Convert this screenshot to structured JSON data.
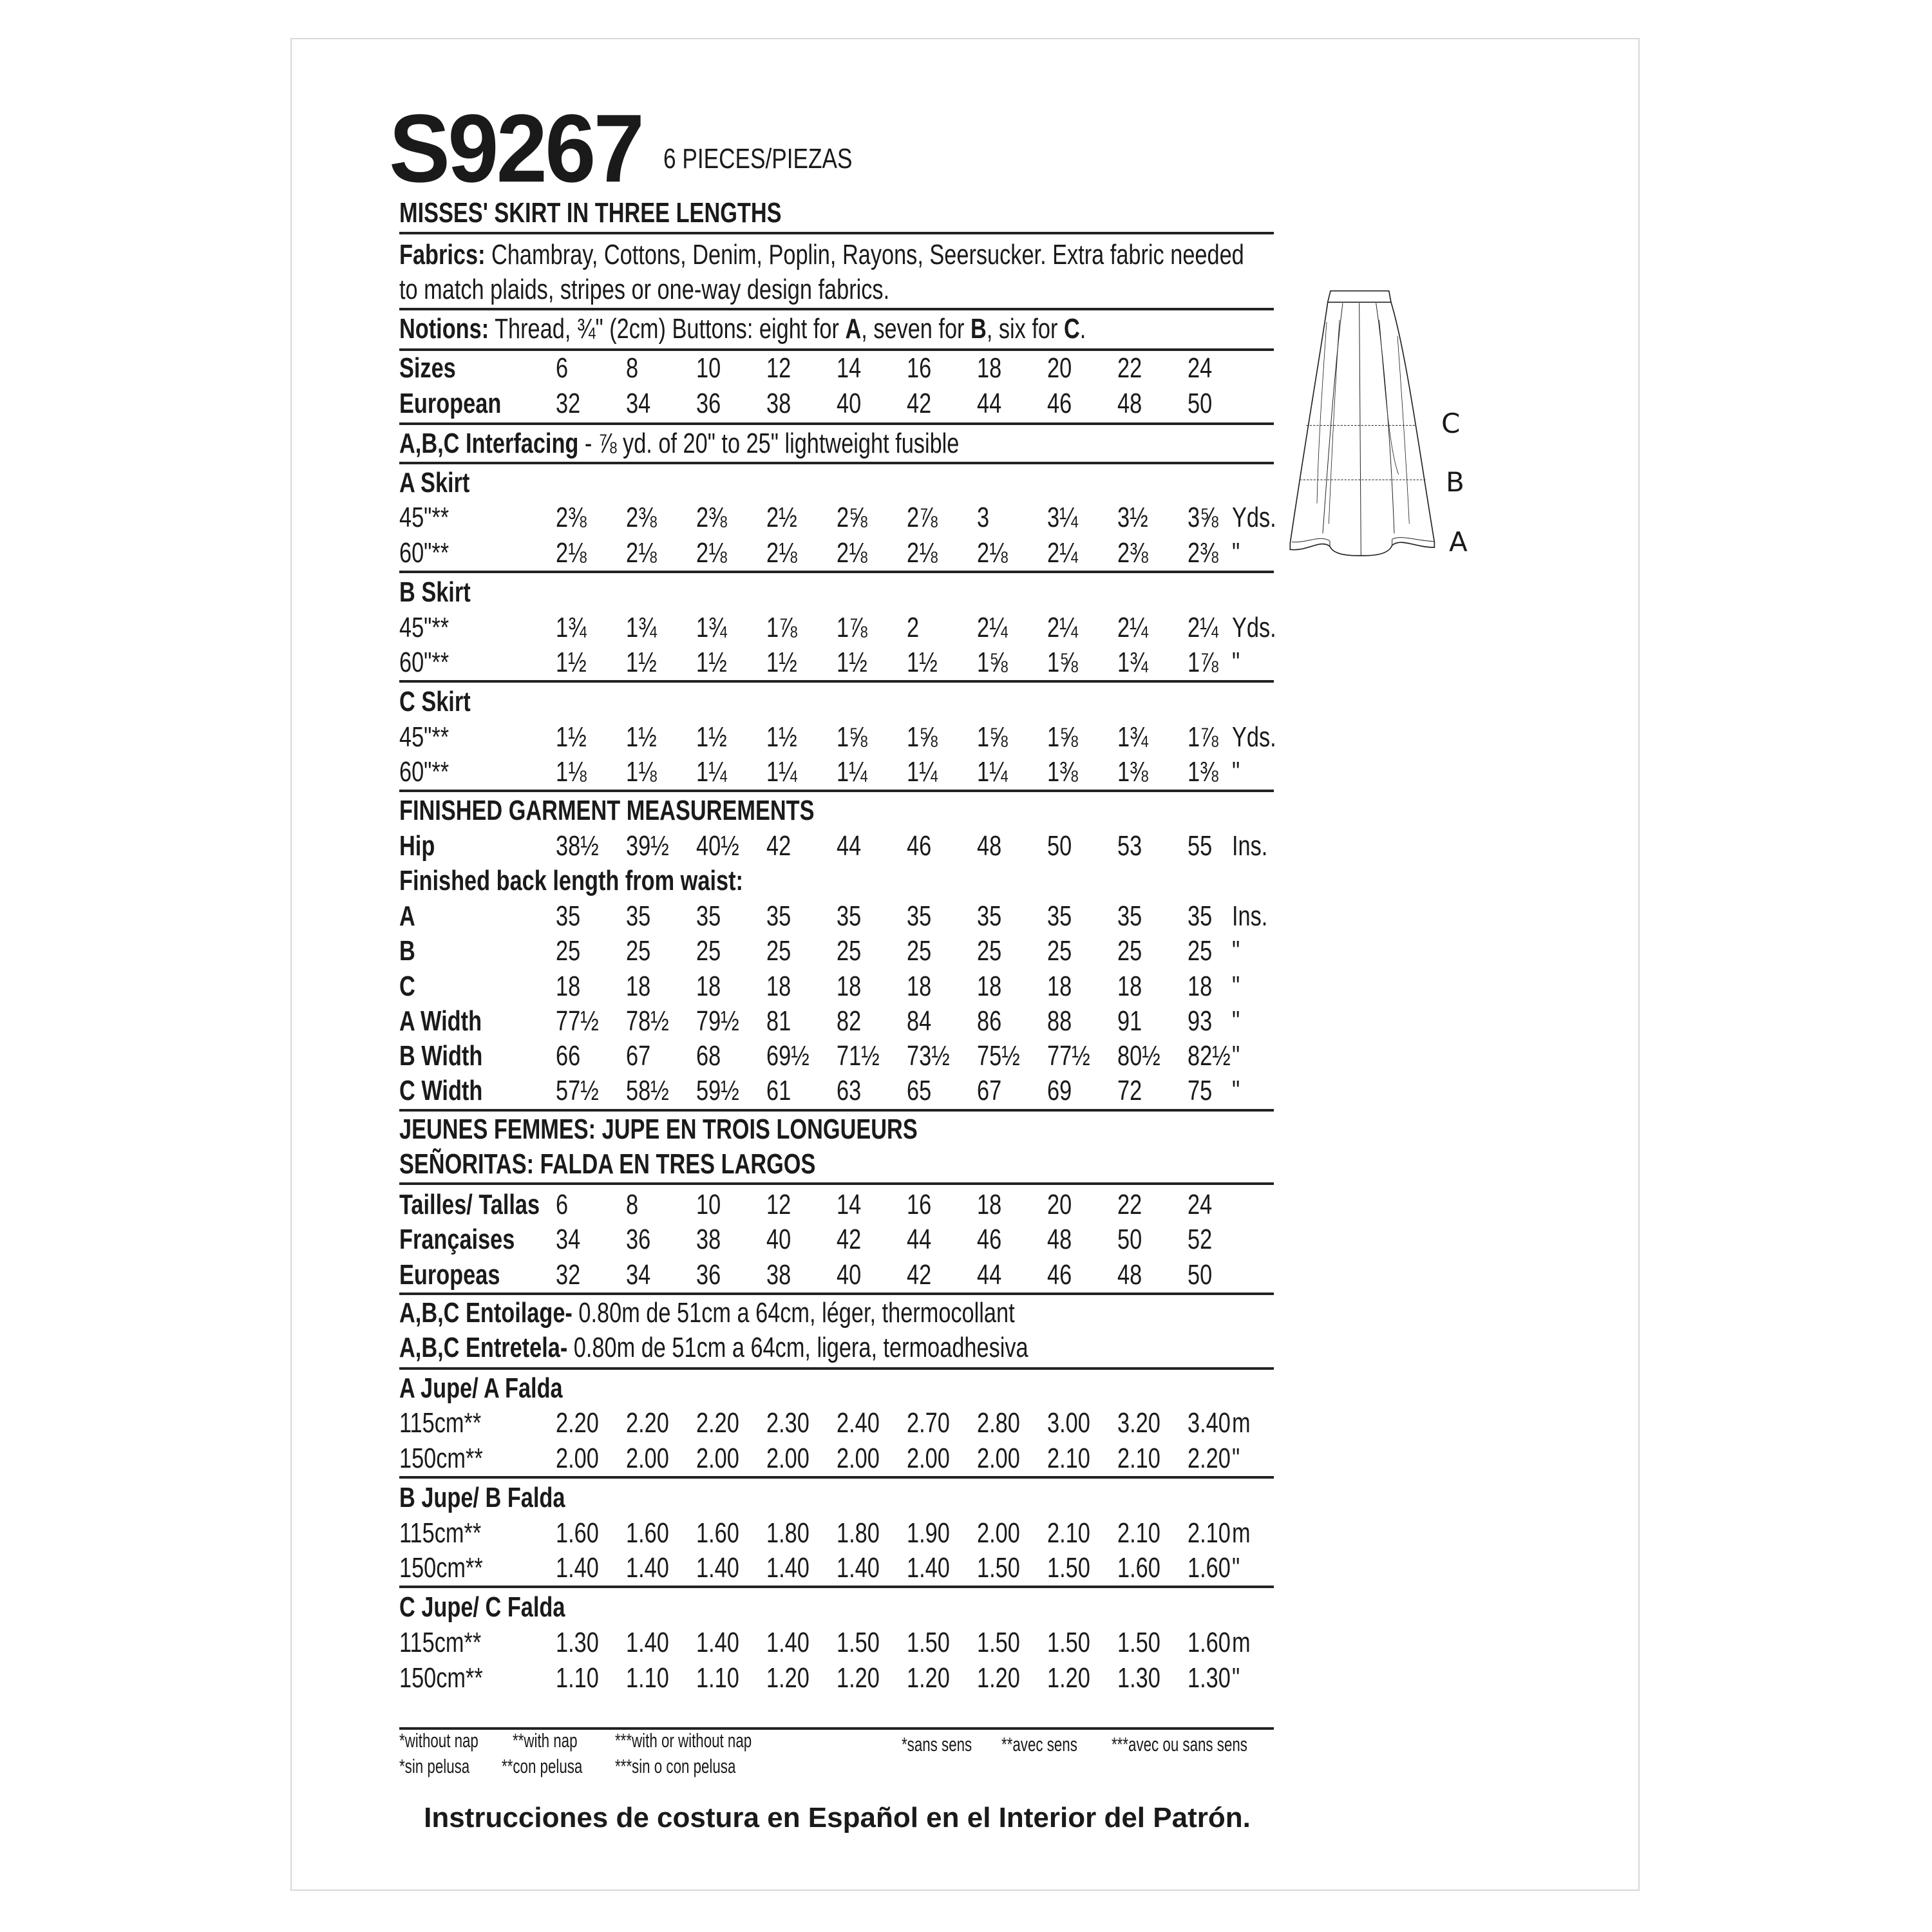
{
  "header": {
    "code": "S9267",
    "pieces": "6 PIECES/PIEZAS",
    "title": "MISSES' SKIRT IN THREE LENGTHS"
  },
  "fabrics": {
    "label": "Fabrics:",
    "line1": "Chambray, Cottons, Denim, Poplin, Rayons, Seersucker. Extra fabric needed",
    "line2": "to match plaids, stripes or one-way design fabrics."
  },
  "notions": {
    "label": "Notions:",
    "parts": [
      "Thread, ¾\" (2cm) Buttons: eight for ",
      "A",
      ", seven for ",
      "B",
      ", six for ",
      "C",
      "."
    ]
  },
  "sizes": [
    {
      "label": "Sizes",
      "values": [
        "6",
        "8",
        "10",
        "12",
        "14",
        "16",
        "18",
        "20",
        "22",
        "24"
      ]
    },
    {
      "label": "European",
      "values": [
        "32",
        "34",
        "36",
        "38",
        "40",
        "42",
        "44",
        "46",
        "48",
        "50"
      ]
    }
  ],
  "interfacing": {
    "label": "A,B,C Interfacing",
    "text": " - ⅞ yd. of 20\" to 25\" lightweight fusible"
  },
  "yardage": [
    {
      "title": "A Skirt",
      "rows": [
        {
          "label": "45\"**",
          "values": [
            "2⅜",
            "2⅜",
            "2⅜",
            "2½",
            "2⅝",
            "2⅞",
            "3",
            "3¼",
            "3½",
            "3⅝"
          ],
          "unit": "Yds."
        },
        {
          "label": "60\"**",
          "values": [
            "2⅛",
            "2⅛",
            "2⅛",
            "2⅛",
            "2⅛",
            "2⅛",
            "2⅛",
            "2¼",
            "2⅜",
            "2⅜"
          ],
          "unit": "\""
        }
      ]
    },
    {
      "title": "B Skirt",
      "rows": [
        {
          "label": "45\"**",
          "values": [
            "1¾",
            "1¾",
            "1¾",
            "1⅞",
            "1⅞",
            "2",
            "2¼",
            "2¼",
            "2¼",
            "2¼"
          ],
          "unit": "Yds."
        },
        {
          "label": "60\"**",
          "values": [
            "1½",
            "1½",
            "1½",
            "1½",
            "1½",
            "1½",
            "1⅝",
            "1⅝",
            "1¾",
            "1⅞"
          ],
          "unit": "\""
        }
      ]
    },
    {
      "title": "C Skirt",
      "rows": [
        {
          "label": "45\"**",
          "values": [
            "1½",
            "1½",
            "1½",
            "1½",
            "1⅝",
            "1⅝",
            "1⅝",
            "1⅝",
            "1¾",
            "1⅞"
          ],
          "unit": "Yds."
        },
        {
          "label": "60\"**",
          "values": [
            "1⅛",
            "1⅛",
            "1¼",
            "1¼",
            "1¼",
            "1¼",
            "1¼",
            "1⅜",
            "1⅜",
            "1⅜"
          ],
          "unit": "\""
        }
      ]
    }
  ],
  "finished": {
    "title": "FINISHED GARMENT MEASUREMENTS",
    "hip": {
      "label": "Hip",
      "values": [
        "38½",
        "39½",
        "40½",
        "42",
        "44",
        "46",
        "48",
        "50",
        "53",
        "55"
      ],
      "unit": "Ins."
    },
    "back_length_label": "Finished back length from waist:",
    "rows": [
      {
        "label": "A",
        "values": [
          "35",
          "35",
          "35",
          "35",
          "35",
          "35",
          "35",
          "35",
          "35",
          "35"
        ],
        "unit": "Ins."
      },
      {
        "label": "B",
        "values": [
          "25",
          "25",
          "25",
          "25",
          "25",
          "25",
          "25",
          "25",
          "25",
          "25"
        ],
        "unit": "\""
      },
      {
        "label": "C",
        "values": [
          "18",
          "18",
          "18",
          "18",
          "18",
          "18",
          "18",
          "18",
          "18",
          "18"
        ],
        "unit": "\""
      },
      {
        "label": "A Width",
        "values": [
          "77½",
          "78½",
          "79½",
          "81",
          "82",
          "84",
          "86",
          "88",
          "91",
          "93"
        ],
        "unit": "\""
      },
      {
        "label": "B Width",
        "values": [
          "66",
          "67",
          "68",
          "69½",
          "71½",
          "73½",
          "75½",
          "77½",
          "80½",
          "82½"
        ],
        "unit": "\""
      },
      {
        "label": "C Width",
        "values": [
          "57½",
          "58½",
          "59½",
          "61",
          "63",
          "65",
          "67",
          "69",
          "72",
          "75"
        ],
        "unit": "\""
      }
    ]
  },
  "translations": {
    "french_title": "JEUNES FEMMES: JUPE EN TROIS LONGUEURS",
    "spanish_title": "SEÑORITAS: FALDA EN TRES LARGOS"
  },
  "metric_sizes": [
    {
      "label": "Tailles/ Tallas",
      "values": [
        "6",
        "8",
        "10",
        "12",
        "14",
        "16",
        "18",
        "20",
        "22",
        "24"
      ]
    },
    {
      "label": "Françaises",
      "values": [
        "34",
        "36",
        "38",
        "40",
        "42",
        "44",
        "46",
        "48",
        "50",
        "52"
      ]
    },
    {
      "label": "Europeas",
      "values": [
        "32",
        "34",
        "36",
        "38",
        "40",
        "42",
        "44",
        "46",
        "48",
        "50"
      ]
    }
  ],
  "entoilage": {
    "label": "A,B,C Entoilage-",
    "text": " 0.80m de 51cm a 64cm, léger, thermocollant"
  },
  "entretela": {
    "label": "A,B,C Entretela-",
    "text": " 0.80m de 51cm a 64cm, ligera, termoadhesiva"
  },
  "metric_yardage": [
    {
      "title": "A Jupe/ A Falda",
      "rows": [
        {
          "label": "115cm**",
          "values": [
            "2.20",
            "2.20",
            "2.20",
            "2.30",
            "2.40",
            "2.70",
            "2.80",
            "3.00",
            "3.20",
            "3.40"
          ],
          "unit": "m"
        },
        {
          "label": "150cm**",
          "values": [
            "2.00",
            "2.00",
            "2.00",
            "2.00",
            "2.00",
            "2.00",
            "2.00",
            "2.10",
            "2.10",
            "2.20"
          ],
          "unit": "\""
        }
      ]
    },
    {
      "title": "B Jupe/ B Falda",
      "rows": [
        {
          "label": "115cm**",
          "values": [
            "1.60",
            "1.60",
            "1.60",
            "1.80",
            "1.80",
            "1.90",
            "2.00",
            "2.10",
            "2.10",
            "2.10"
          ],
          "unit": "m"
        },
        {
          "label": "150cm**",
          "values": [
            "1.40",
            "1.40",
            "1.40",
            "1.40",
            "1.40",
            "1.40",
            "1.50",
            "1.50",
            "1.60",
            "1.60"
          ],
          "unit": "\""
        }
      ]
    },
    {
      "title": "C Jupe/ C Falda",
      "rows": [
        {
          "label": "115cm**",
          "values": [
            "1.30",
            "1.40",
            "1.40",
            "1.40",
            "1.50",
            "1.50",
            "1.50",
            "1.50",
            "1.50",
            "1.60"
          ],
          "unit": "m"
        },
        {
          "label": "150cm**",
          "values": [
            "1.10",
            "1.10",
            "1.10",
            "1.20",
            "1.20",
            "1.20",
            "1.20",
            "1.20",
            "1.30",
            "1.30"
          ],
          "unit": "\""
        }
      ]
    }
  ],
  "footnotes": {
    "english": [
      "*without nap",
      "**with nap",
      "***with or without nap"
    ],
    "spanish": [
      "*sin pelusa",
      "**con pelusa",
      "***sin o con pelusa"
    ],
    "french": [
      "*sans sens",
      "**avec sens",
      "***avec ou sans sens"
    ]
  },
  "bottom_note": "Instrucciones de costura en Español en el Interior del Patrón.",
  "illustration": {
    "view_labels": [
      "C",
      "B",
      "A"
    ]
  }
}
